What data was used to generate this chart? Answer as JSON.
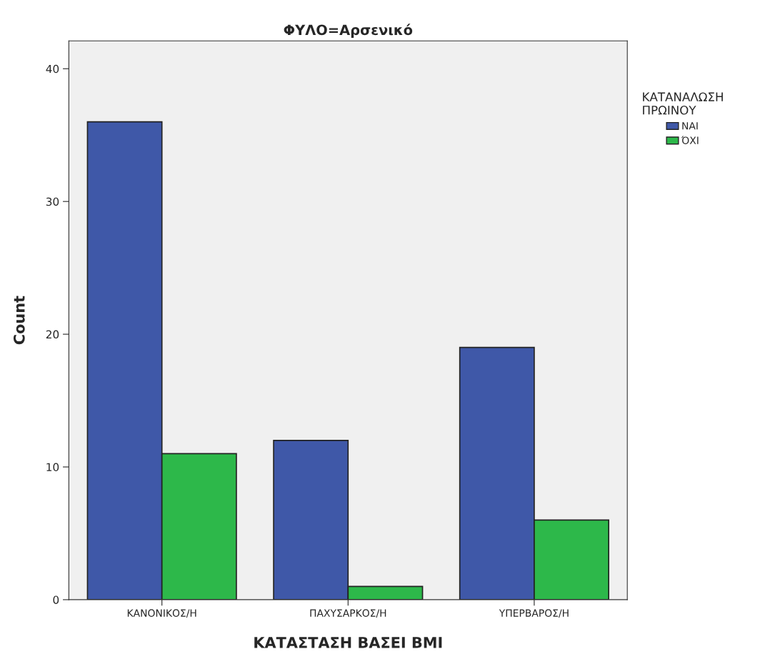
{
  "chart_data": {
    "type": "bar",
    "title": "ΦΥΛΟ=Αρσενικό",
    "xlabel": "ΚΑΤΑΣΤΑΣΗ ΒΑΣΕΙ BMI",
    "ylabel": "Count",
    "legend_title": "ΚΑΤΑΝΑΛΩΣΗ\nΠΡΩΙΝΟΥ",
    "categories": [
      "ΚΑΝΟΝΙΚΟΣ/Η",
      "ΠΑΧΥΣΑΡΚΟΣ/Η",
      "ΥΠΕΡΒΑΡΟΣ/Η"
    ],
    "series": [
      {
        "name": "ΝΑΙ",
        "color": "#3f58a8",
        "values": [
          36,
          12,
          19
        ]
      },
      {
        "name": "ΌΧΙ",
        "color": "#2db84a",
        "values": [
          11,
          1,
          6
        ]
      }
    ],
    "ylim": [
      0,
      42.1
    ],
    "yticks": [
      0,
      10,
      20,
      30,
      40
    ],
    "grid": false,
    "legend": "right"
  }
}
